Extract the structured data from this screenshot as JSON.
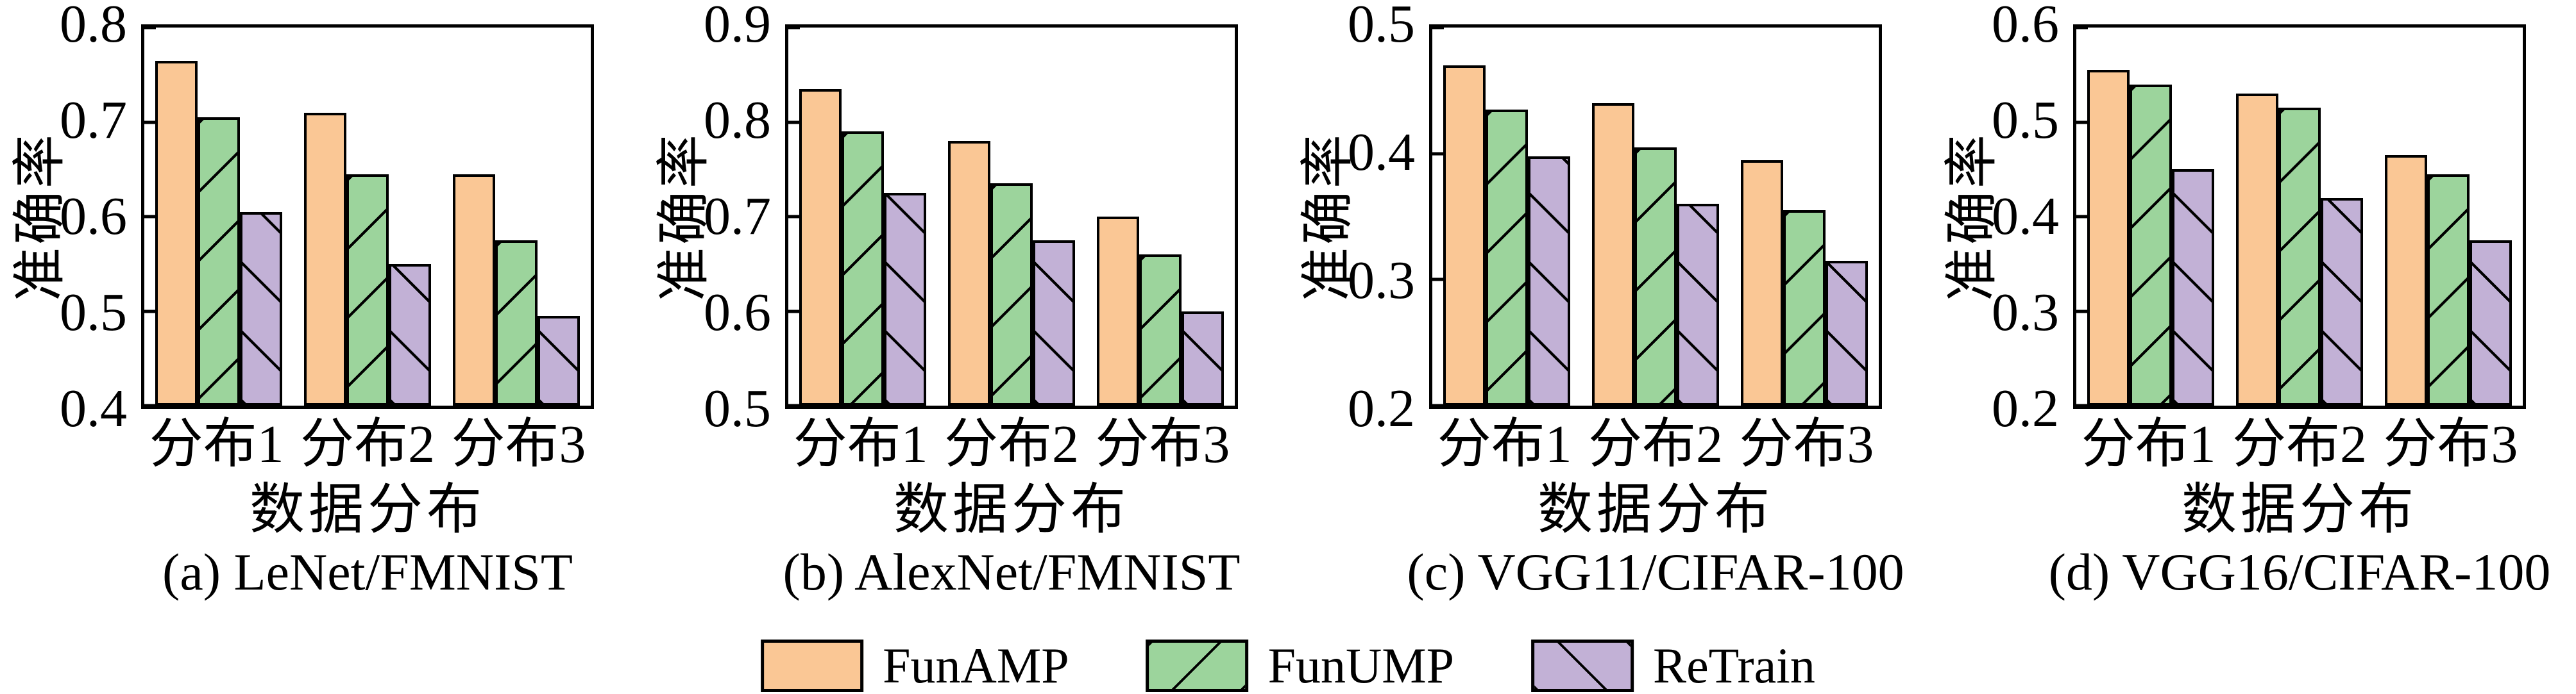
{
  "figure": {
    "colors": {
      "funamp": "#FAC795",
      "funump": "#9CD49C",
      "retrain": "#C2B1D6",
      "stroke": "#000000"
    },
    "legend": [
      {
        "name": "FunAMP",
        "hatch": "none",
        "color_key": "funamp"
      },
      {
        "name": "FunUMP",
        "hatch": "/",
        "color_key": "funump"
      },
      {
        "name": "ReTrain",
        "hatch": "\\",
        "color_key": "retrain"
      }
    ]
  },
  "chart_data": [
    {
      "type": "bar",
      "title": "(a) LeNet/FMNIST",
      "xlabel": "数据分布",
      "ylabel": "准确率",
      "categories": [
        "分布1",
        "分布2",
        "分布3"
      ],
      "series": [
        {
          "name": "FunAMP",
          "values": [
            0.765,
            0.71,
            0.645
          ]
        },
        {
          "name": "FunUMP",
          "values": [
            0.705,
            0.645,
            0.575
          ]
        },
        {
          "name": "ReTrain",
          "values": [
            0.605,
            0.55,
            0.495
          ]
        }
      ],
      "ylim": [
        0.4,
        0.8
      ],
      "yticks": [
        0.4,
        0.5,
        0.6,
        0.7,
        0.8
      ],
      "grid": false,
      "legend_position": "bottom-shared"
    },
    {
      "type": "bar",
      "title": "(b) AlexNet/FMNIST",
      "xlabel": "数据分布",
      "ylabel": "准确率",
      "categories": [
        "分布1",
        "分布2",
        "分布3"
      ],
      "series": [
        {
          "name": "FunAMP",
          "values": [
            0.835,
            0.78,
            0.7
          ]
        },
        {
          "name": "FunUMP",
          "values": [
            0.79,
            0.735,
            0.66
          ]
        },
        {
          "name": "ReTrain",
          "values": [
            0.725,
            0.675,
            0.6
          ]
        }
      ],
      "ylim": [
        0.5,
        0.9
      ],
      "yticks": [
        0.5,
        0.6,
        0.7,
        0.8,
        0.9
      ],
      "grid": false,
      "legend_position": "bottom-shared"
    },
    {
      "type": "bar",
      "title": "(c) VGG11/CIFAR-100",
      "xlabel": "数据分布",
      "ylabel": "准确率",
      "categories": [
        "分布1",
        "分布2",
        "分布3"
      ],
      "series": [
        {
          "name": "FunAMP",
          "values": [
            0.47,
            0.44,
            0.395
          ]
        },
        {
          "name": "FunUMP",
          "values": [
            0.435,
            0.405,
            0.355
          ]
        },
        {
          "name": "ReTrain",
          "values": [
            0.398,
            0.36,
            0.315
          ]
        }
      ],
      "ylim": [
        0.2,
        0.5
      ],
      "yticks": [
        0.2,
        0.3,
        0.4,
        0.5
      ],
      "grid": false,
      "legend_position": "bottom-shared"
    },
    {
      "type": "bar",
      "title": "(d) VGG16/CIFAR-100",
      "xlabel": "数据分布",
      "ylabel": "准确率",
      "categories": [
        "分布1",
        "分布2",
        "分布3"
      ],
      "series": [
        {
          "name": "FunAMP",
          "values": [
            0.555,
            0.53,
            0.465
          ]
        },
        {
          "name": "FunUMP",
          "values": [
            0.54,
            0.515,
            0.445
          ]
        },
        {
          "name": "ReTrain",
          "values": [
            0.45,
            0.42,
            0.375
          ]
        }
      ],
      "ylim": [
        0.2,
        0.6
      ],
      "yticks": [
        0.2,
        0.3,
        0.4,
        0.5,
        0.6
      ],
      "grid": false,
      "legend_position": "bottom-shared"
    }
  ]
}
